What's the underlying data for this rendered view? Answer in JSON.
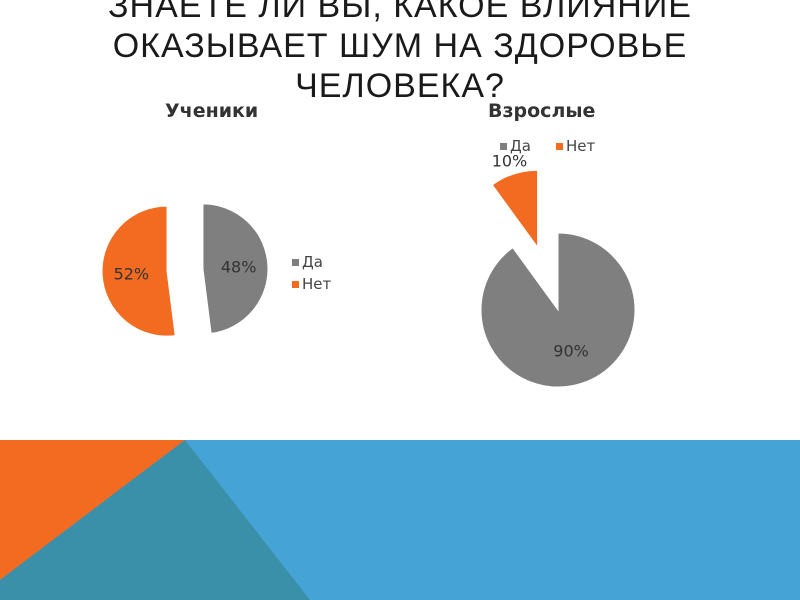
{
  "slide": {
    "title_lines": [
      "Знаете ли вы, какое влияние",
      "оказывает шум на здоровье",
      "человека?"
    ]
  },
  "colors": {
    "yes": "#7f7f7f",
    "no": "#f26b21",
    "band_blue": "#45a3d6",
    "band_orange": "#f26b21",
    "band_dark": "#3a8fa9"
  },
  "chart_data": [
    {
      "type": "pie",
      "title": "Ученики",
      "categories": [
        "Да",
        "Нет"
      ],
      "values": [
        48,
        52
      ],
      "labels": [
        "48%",
        "52%"
      ],
      "legend": "right"
    },
    {
      "type": "pie",
      "title": "Взрослые",
      "categories": [
        "Да",
        "Нет"
      ],
      "values": [
        90,
        10
      ],
      "labels": [
        "90%",
        "10%"
      ],
      "legend": "top"
    }
  ]
}
